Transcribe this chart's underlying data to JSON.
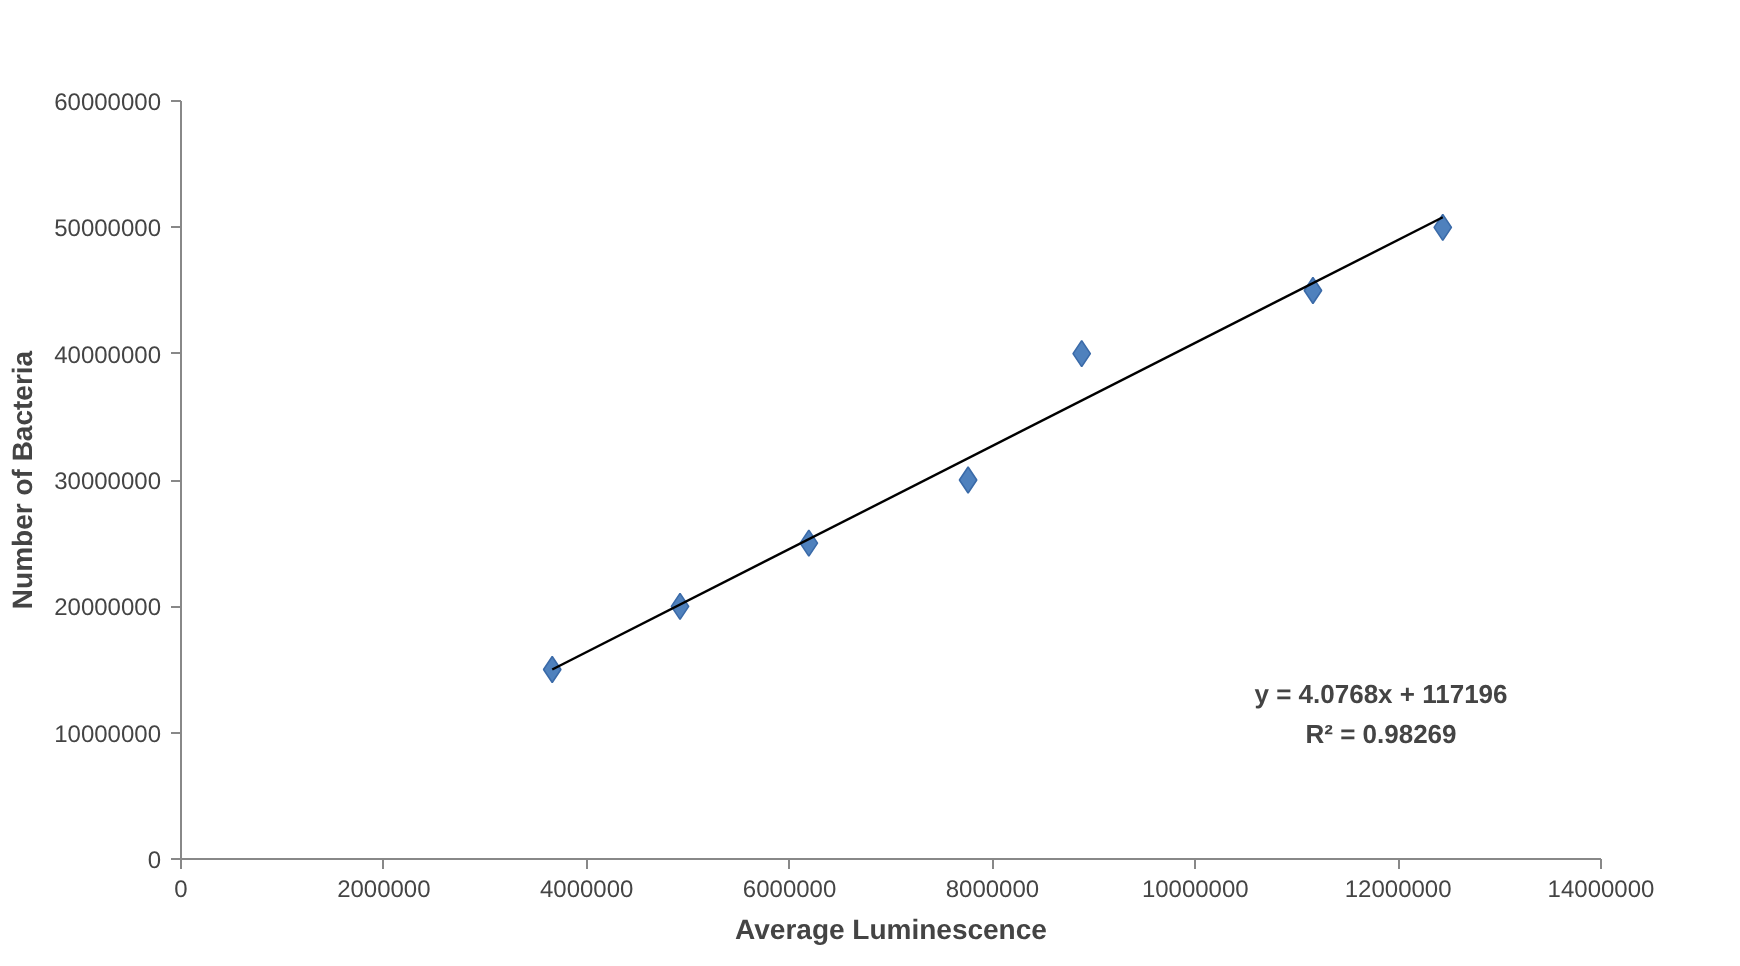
{
  "chart_data": {
    "type": "scatter",
    "xlabel": "Average Luminescence",
    "ylabel": "Number of Bacteria",
    "xlim": [
      0,
      14000000
    ],
    "xticks": [
      0,
      2000000,
      4000000,
      6000000,
      8000000,
      10000000,
      12000000,
      14000000
    ],
    "ylim": [
      0,
      60000000
    ],
    "yticks": [
      0,
      10000000,
      20000000,
      30000000,
      40000000,
      50000000,
      60000000
    ],
    "marker": "diamond",
    "grid": false,
    "series": [
      {
        "color": "#4f81bd",
        "x": [
          3660000,
          4920000,
          6190000,
          7760000,
          8880000,
          11160000,
          12440000
        ],
        "values": [
          15000000,
          20000000,
          25000000,
          30000000,
          40000000,
          45000000,
          50000000
        ]
      },
      {
        "type": "line",
        "marker": "none",
        "color": "#000000",
        "x": [
          3660000,
          12440000
        ],
        "values": [
          15000000,
          50800000
        ]
      }
    ],
    "annotations": [
      "y = 4.0768x + 117196",
      "R² = 0.98269"
    ]
  }
}
